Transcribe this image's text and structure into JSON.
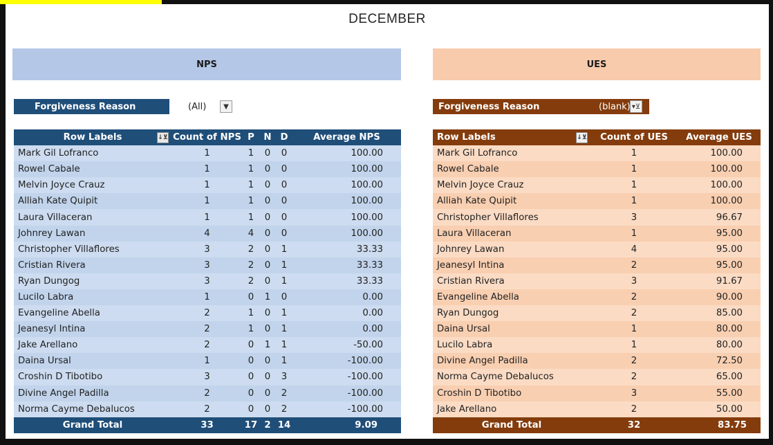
{
  "title": "DECEMBER",
  "nps": {
    "banner": "NPS",
    "filter": {
      "label": "Forgiveness Reason",
      "value": "(All)"
    },
    "headers": [
      "Row Labels",
      "Count of NPS",
      "P",
      "N",
      "D",
      "Average NPS"
    ],
    "rows": [
      [
        "Mark Gil Lofranco",
        "1",
        "1",
        "0",
        "0",
        "100.00"
      ],
      [
        "Rowel Cabale",
        "1",
        "1",
        "0",
        "0",
        "100.00"
      ],
      [
        "Melvin Joyce Crauz",
        "1",
        "1",
        "0",
        "0",
        "100.00"
      ],
      [
        "Alliah Kate Quipit",
        "1",
        "1",
        "0",
        "0",
        "100.00"
      ],
      [
        "Laura Villaceran",
        "1",
        "1",
        "0",
        "0",
        "100.00"
      ],
      [
        "Johnrey Lawan",
        "4",
        "4",
        "0",
        "0",
        "100.00"
      ],
      [
        "Christopher Villaflores",
        "3",
        "2",
        "0",
        "1",
        "33.33"
      ],
      [
        "Cristian Rivera",
        "3",
        "2",
        "0",
        "1",
        "33.33"
      ],
      [
        "Ryan Dungog",
        "3",
        "2",
        "0",
        "1",
        "33.33"
      ],
      [
        "Lucilo Labra",
        "1",
        "0",
        "1",
        "0",
        "0.00"
      ],
      [
        "Evangeline Abella",
        "2",
        "1",
        "0",
        "1",
        "0.00"
      ],
      [
        "Jeanesyl Intina",
        "2",
        "1",
        "0",
        "1",
        "0.00"
      ],
      [
        "Jake Arellano",
        "2",
        "0",
        "1",
        "1",
        "-50.00"
      ],
      [
        "Daina Ursal",
        "1",
        "0",
        "0",
        "1",
        "-100.00"
      ],
      [
        "Croshin D Tibotibo",
        "3",
        "0",
        "0",
        "3",
        "-100.00"
      ],
      [
        "Divine Angel Padilla",
        "2",
        "0",
        "0",
        "2",
        "-100.00"
      ],
      [
        "Norma Cayme Debalucos",
        "2",
        "0",
        "0",
        "2",
        "-100.00"
      ]
    ],
    "total": [
      "Grand Total",
      "33",
      "17",
      "2",
      "14",
      "9.09"
    ]
  },
  "ues": {
    "banner": "UES",
    "filter": {
      "label": "Forgiveness Reason",
      "value": "(blank)"
    },
    "headers": [
      "Row Labels",
      "Count of UES",
      "Average UES"
    ],
    "rows": [
      [
        "Mark Gil Lofranco",
        "1",
        "100.00"
      ],
      [
        "Rowel Cabale",
        "1",
        "100.00"
      ],
      [
        "Melvin Joyce Crauz",
        "1",
        "100.00"
      ],
      [
        "Alliah Kate Quipit",
        "1",
        "100.00"
      ],
      [
        "Christopher Villaflores",
        "3",
        "96.67"
      ],
      [
        "Laura Villaceran",
        "1",
        "95.00"
      ],
      [
        "Johnrey Lawan",
        "4",
        "95.00"
      ],
      [
        "Jeanesyl Intina",
        "2",
        "95.00"
      ],
      [
        "Cristian Rivera",
        "3",
        "91.67"
      ],
      [
        "Evangeline Abella",
        "2",
        "90.00"
      ],
      [
        "Ryan Dungog",
        "2",
        "85.00"
      ],
      [
        "Daina Ursal",
        "1",
        "80.00"
      ],
      [
        "Lucilo Labra",
        "1",
        "80.00"
      ],
      [
        "Divine Angel Padilla",
        "2",
        "72.50"
      ],
      [
        "Norma Cayme Debalucos",
        "2",
        "65.00"
      ],
      [
        "Croshin D Tibotibo",
        "3",
        "55.00"
      ],
      [
        "Jake Arellano",
        "2",
        "50.00"
      ]
    ],
    "total": [
      "Grand Total",
      "32",
      "83.75"
    ]
  },
  "icons": {
    "nps_filter_button": "dropdown-arrow-icon",
    "ues_filter_button": "filter-active-icon",
    "sort_filter": "sort-filter-icon"
  },
  "colors": {
    "nps_dark": "#1f4e79",
    "nps_light": "#b4c7e7",
    "ues_dark": "#843c0c",
    "ues_light": "#f8cbad"
  }
}
